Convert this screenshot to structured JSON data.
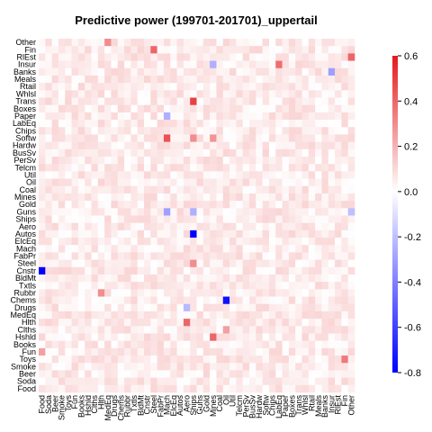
{
  "chart_data": {
    "type": "heatmap",
    "title": "Predictive power (199701-201701)_uppertail",
    "industries": [
      "Food",
      "Soda",
      "Beer",
      "Smoke",
      "Toys",
      "Fun",
      "Books",
      "Hshld",
      "Clths",
      "Hlth",
      "MedEq",
      "Drugs",
      "Chems",
      "Rubbr",
      "Txtls",
      "BldMt",
      "Cnstr",
      "Steel",
      "FabPr",
      "Mach",
      "ElcEq",
      "Autos",
      "Aero",
      "Ships",
      "Guns",
      "Gold",
      "Mines",
      "Coal",
      "Oil",
      "Util",
      "Telcm",
      "PerSv",
      "BusSv",
      "Hardw",
      "Softw",
      "Chips",
      "LabEq",
      "Paper",
      "Boxes",
      "Trans",
      "Whlsl",
      "Rtail",
      "Meals",
      "Banks",
      "Insur",
      "RlEst",
      "Fin",
      "Other"
    ],
    "x_labels": [
      "Food",
      "Soda",
      "Beer",
      "Smoke",
      "Toys",
      "Fun",
      "Books",
      "Hshld",
      "Clths",
      "Hlth",
      "MedEq",
      "Drugs",
      "Chems",
      "Rubbr",
      "Txtls",
      "BldMt",
      "Cnstr",
      "Steel",
      "FabPr",
      "Mach",
      "ElcEq",
      "Autos",
      "Aero",
      "Ships",
      "Guns",
      "Gold",
      "Mines",
      "Coal",
      "Oil",
      "Util",
      "Telcm",
      "PerSv",
      "BusSv",
      "Hardw",
      "Softw",
      "Chips",
      "LabEq",
      "Paper",
      "Boxes",
      "Trans",
      "Whlsl",
      "Rtail",
      "Meals",
      "Banks",
      "Insur",
      "RlEst",
      "Fin",
      "Other"
    ],
    "y_labels": [
      "Food",
      "Soda",
      "Beer",
      "Smoke",
      "Toys",
      "Fun",
      "Books",
      "Hshld",
      "Clths",
      "Hlth",
      "MedEq",
      "Drugs",
      "Chems",
      "Rubbr",
      "Txtls",
      "BldMt",
      "Cnstr",
      "Steel",
      "FabPr",
      "Mach",
      "ElcEq",
      "Autos",
      "Aero",
      "Ships",
      "Guns",
      "Gold",
      "Mines",
      "Coal",
      "Oil",
      "Util",
      "Telcm",
      "PerSv",
      "BusSv",
      "Hardw",
      "Softw",
      "Chips",
      "LabEq",
      "Paper",
      "Boxes",
      "Trans",
      "Whlsl",
      "Rtail",
      "Meals",
      "Banks",
      "Insur",
      "RlEst",
      "Fin",
      "Other"
    ],
    "base_value": 0.05,
    "notable_cells": [
      {
        "x": "Food",
        "y": "Cnstr",
        "value": -0.81
      },
      {
        "x": "Ships",
        "y": "Autos",
        "value": -0.8
      },
      {
        "x": "Oil",
        "y": "Chems",
        "value": -0.75
      },
      {
        "x": "Ships",
        "y": "Trans",
        "value": 0.5
      },
      {
        "x": "Mach",
        "y": "Softw",
        "value": 0.45
      },
      {
        "x": "Steel",
        "y": "Fin",
        "value": 0.4
      },
      {
        "x": "Other",
        "y": "RlEst",
        "value": 0.4
      },
      {
        "x": "LabEq",
        "y": "Insur",
        "value": 0.38
      },
      {
        "x": "Aero",
        "y": "Hlth",
        "value": 0.4
      },
      {
        "x": "Mines",
        "y": "Hshld",
        "value": 0.4
      },
      {
        "x": "Fin",
        "y": "Toys",
        "value": 0.35
      },
      {
        "x": "Ships",
        "y": "Softw",
        "value": 0.3
      },
      {
        "x": "MedEq",
        "y": "Other",
        "value": 0.3
      },
      {
        "x": "Ships",
        "y": "Steel",
        "value": 0.3
      },
      {
        "x": "Mach",
        "y": "Guns",
        "value": -0.3
      },
      {
        "x": "Ships",
        "y": "Guns",
        "value": -0.25
      },
      {
        "x": "Insur",
        "y": "Banks",
        "value": -0.3
      },
      {
        "x": "Mach",
        "y": "Paper",
        "value": -0.25
      },
      {
        "x": "Mines",
        "y": "Insur",
        "value": -0.25
      },
      {
        "x": "Aero",
        "y": "Drugs",
        "value": -0.22
      },
      {
        "x": "Other",
        "y": "Guns",
        "value": -0.2
      },
      {
        "x": "Mines",
        "y": "Softw",
        "value": 0.28
      },
      {
        "x": "Hlth",
        "y": "Rubbr",
        "value": 0.3
      },
      {
        "x": "Oil",
        "y": "Clths",
        "value": 0.25
      },
      {
        "x": "Food",
        "y": "Fun",
        "value": 0.25
      }
    ],
    "colorbar": {
      "min": -0.8,
      "max": 0.6,
      "ticks": [
        "0.6",
        "0.4",
        "0.2",
        "0.0",
        "-0.2",
        "-0.4",
        "-0.6",
        "-0.8"
      ],
      "low_color": "#0000ff",
      "mid_color": "#ffffff",
      "high_color": "#e31a1c"
    },
    "legend_position": "right"
  }
}
